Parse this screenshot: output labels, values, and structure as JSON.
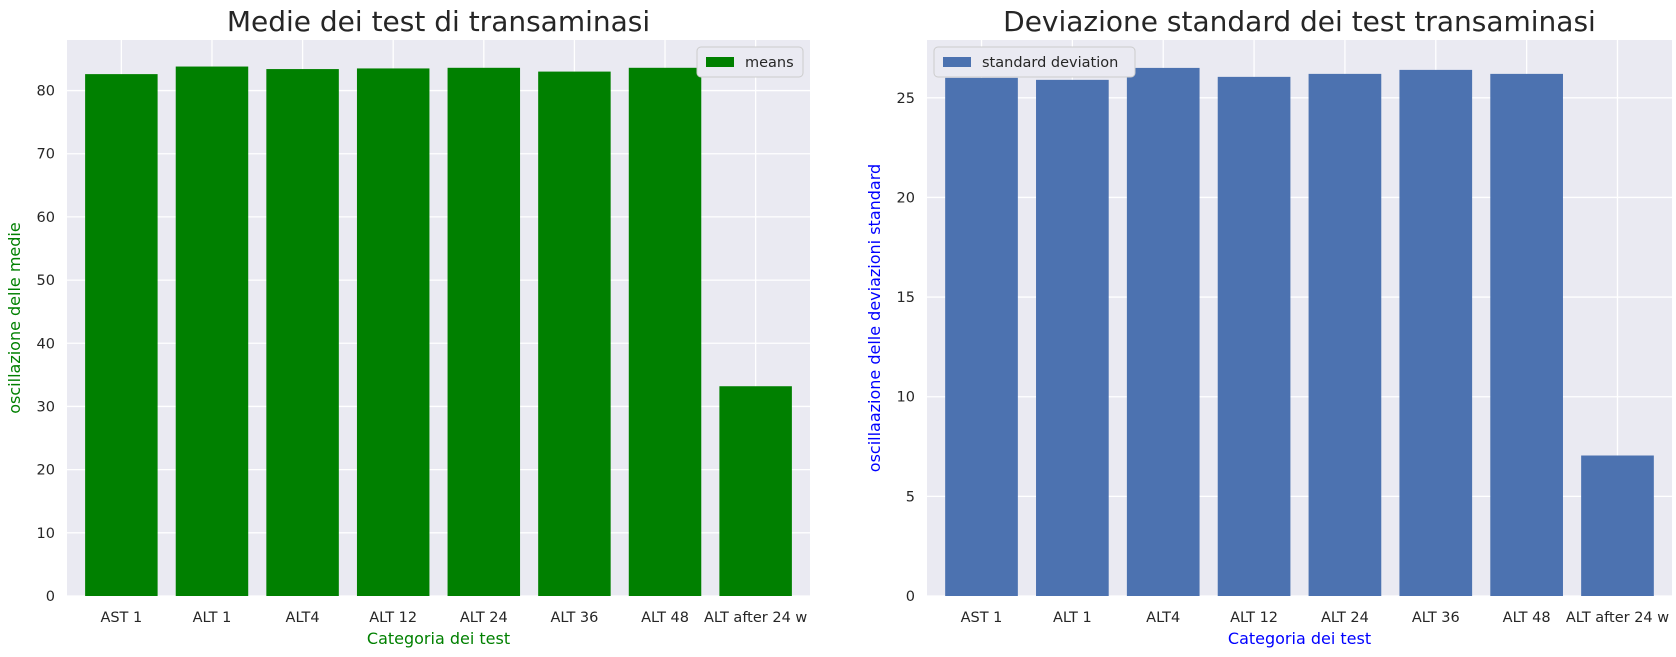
{
  "chart_data": [
    {
      "type": "bar",
      "title": "Medie dei test di transaminasi",
      "xlabel": "Categoria dei test",
      "ylabel": "oscillazione delle medie",
      "label_color": "#008000",
      "bar_color": "#008000",
      "categories": [
        "AST 1",
        "ALT 1",
        "ALT4",
        "ALT 12",
        "ALT 24",
        "ALT 36",
        "ALT 48",
        "ALT after 24 w"
      ],
      "series": [
        {
          "name": "means",
          "values": [
            82.6,
            83.8,
            83.4,
            83.5,
            83.6,
            83.0,
            83.6,
            33.2
          ]
        }
      ],
      "ylim": [
        0,
        88
      ],
      "yticks": [
        0,
        10,
        20,
        30,
        40,
        50,
        60,
        70,
        80
      ],
      "legend_position": "top-right",
      "grid": true
    },
    {
      "type": "bar",
      "title": "Deviazione standard dei test transaminasi",
      "xlabel": "Categoria dei test",
      "ylabel": "oscillaazione delle deviazioni standard",
      "label_color": "#0000ff",
      "bar_color": "#4c72b0",
      "categories": [
        "AST 1",
        "ALT 1",
        "ALT4",
        "ALT 12",
        "ALT 24",
        "ALT 36",
        "ALT 48",
        "ALT after 24 w"
      ],
      "series": [
        {
          "name": "standard deviation",
          "values": [
            26.0,
            25.9,
            26.5,
            26.05,
            26.2,
            26.4,
            26.2,
            7.05
          ]
        }
      ],
      "ylim": [
        0,
        27.9
      ],
      "yticks": [
        0,
        5,
        10,
        15,
        20,
        25
      ],
      "legend_position": "top-left",
      "grid": true
    }
  ],
  "style": {
    "plot_background": "#eaeaf2",
    "grid_color": "#ffffff",
    "text_color": "#262626",
    "title_color": "#262626"
  }
}
